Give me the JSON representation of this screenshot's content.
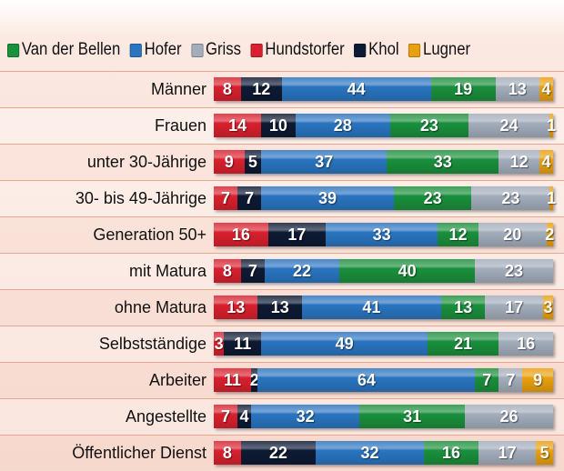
{
  "chart_data": {
    "type": "bar",
    "orientation": "horizontal",
    "stacked": true,
    "legend_position": "top",
    "legend": [
      "Van der Bellen",
      "Hofer",
      "Griss",
      "Hundstorfer",
      "Khol",
      "Lugner"
    ],
    "colors": {
      "Van der Bellen": "#1a8f3c",
      "Hofer": "#2a74c0",
      "Griss": "#a3adbb",
      "Hundstorfer": "#d9202e",
      "Khol": "#0d1a33",
      "Lugner": "#e8a010"
    },
    "stack_order": [
      "Hundstorfer",
      "Khol",
      "Hofer",
      "Van der Bellen",
      "Griss",
      "Lugner"
    ],
    "categories": [
      "Männer",
      "Frauen",
      "unter 30-Jährige",
      "30- bis 49-Jährige",
      "Generation 50+",
      "mit Matura",
      "ohne Matura",
      "Selbstständige",
      "Arbeiter",
      "Angestellte",
      "Öffentlicher Dienst"
    ],
    "series": [
      {
        "name": "Hundstorfer",
        "values": [
          8,
          14,
          9,
          7,
          16,
          8,
          13,
          3,
          11,
          7,
          8
        ]
      },
      {
        "name": "Khol",
        "values": [
          12,
          10,
          5,
          7,
          17,
          7,
          13,
          11,
          2,
          4,
          22
        ]
      },
      {
        "name": "Hofer",
        "values": [
          44,
          28,
          37,
          39,
          33,
          22,
          41,
          49,
          64,
          32,
          32
        ]
      },
      {
        "name": "Van der Bellen",
        "values": [
          19,
          23,
          33,
          23,
          12,
          40,
          13,
          21,
          7,
          31,
          16
        ]
      },
      {
        "name": "Griss",
        "values": [
          13,
          24,
          12,
          23,
          20,
          23,
          17,
          16,
          7,
          26,
          17
        ]
      },
      {
        "name": "Lugner",
        "values": [
          4,
          1,
          4,
          1,
          2,
          0,
          3,
          0,
          9,
          0,
          5
        ]
      }
    ]
  }
}
